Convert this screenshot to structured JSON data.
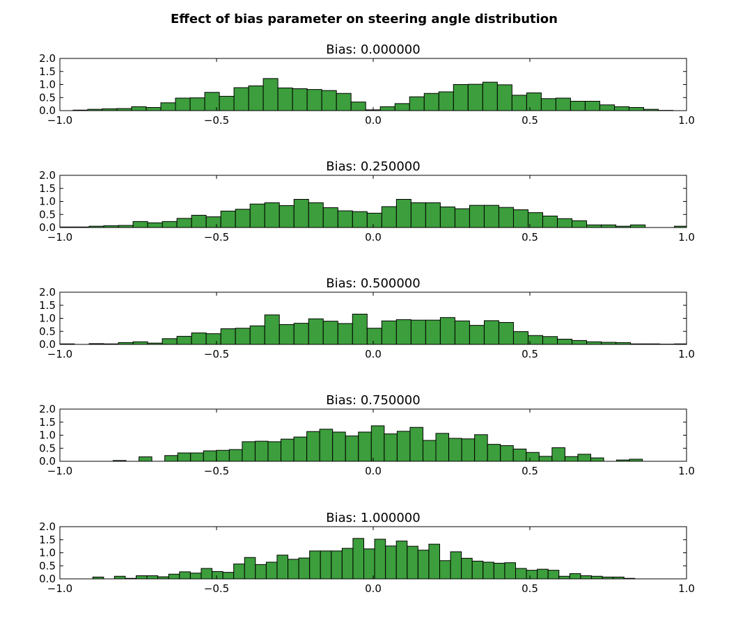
{
  "figure": {
    "title": "Effect of bias parameter on steering angle distribution",
    "bar_color": "#3c9e3c",
    "edge_color": "#000000"
  },
  "chart_data": [
    {
      "type": "bar",
      "title": "Bias: 0.000000",
      "xlim": [
        -1.0,
        1.0
      ],
      "ylim": [
        0.0,
        2.0
      ],
      "xticks": [
        "−1.0",
        "−0.5",
        "0.0",
        "0.5",
        "1.0"
      ],
      "yticks": [
        "0.0",
        "0.5",
        "1.0",
        "1.5",
        "2.0"
      ],
      "bin_start": -0.958,
      "bin_width": 0.0467,
      "values": [
        0.02,
        0.05,
        0.07,
        0.08,
        0.15,
        0.12,
        0.3,
        0.48,
        0.49,
        0.7,
        0.55,
        0.88,
        0.95,
        1.23,
        0.87,
        0.84,
        0.81,
        0.77,
        0.66,
        0.33,
        0.03,
        0.15,
        0.27,
        0.53,
        0.66,
        0.72,
        1.0,
        1.01,
        1.09,
        0.99,
        0.59,
        0.68,
        0.46,
        0.48,
        0.36,
        0.36,
        0.22,
        0.15,
        0.12,
        0.05,
        0.01
      ]
    },
    {
      "type": "bar",
      "title": "Bias: 0.250000",
      "xlim": [
        -1.0,
        1.0
      ],
      "ylim": [
        0.0,
        2.0
      ],
      "xticks": [
        "−1.0",
        "−0.5",
        "0.0",
        "0.5",
        "1.0"
      ],
      "yticks": [
        "0.0",
        "0.5",
        "1.0",
        "1.5",
        "2.0"
      ],
      "bin_start": -1.0,
      "bin_width": 0.0467,
      "values": [
        0.02,
        0.02,
        0.05,
        0.07,
        0.08,
        0.23,
        0.18,
        0.23,
        0.35,
        0.47,
        0.41,
        0.63,
        0.7,
        0.9,
        0.95,
        0.84,
        1.08,
        0.95,
        0.76,
        0.64,
        0.61,
        0.55,
        0.8,
        1.08,
        0.95,
        0.95,
        0.79,
        0.72,
        0.85,
        0.85,
        0.77,
        0.68,
        0.57,
        0.44,
        0.34,
        0.26,
        0.1,
        0.1,
        0.05,
        0.1,
        0.0,
        0.0,
        0.05
      ]
    },
    {
      "type": "bar",
      "title": "Bias: 0.500000",
      "xlim": [
        -1.0,
        1.0
      ],
      "ylim": [
        0.0,
        2.0
      ],
      "xticks": [
        "−1.0",
        "−0.5",
        "0.0",
        "0.5",
        "1.0"
      ],
      "yticks": [
        "0.0",
        "0.5",
        "1.0",
        "1.5",
        "2.0"
      ],
      "bin_start": -1.0,
      "bin_width": 0.0467,
      "values": [
        0.02,
        0.0,
        0.03,
        0.02,
        0.07,
        0.1,
        0.05,
        0.22,
        0.31,
        0.44,
        0.41,
        0.6,
        0.62,
        0.71,
        1.13,
        0.76,
        0.81,
        0.98,
        0.89,
        0.8,
        1.16,
        0.62,
        0.9,
        0.95,
        0.93,
        0.93,
        1.03,
        0.9,
        0.73,
        0.91,
        0.84,
        0.49,
        0.34,
        0.3,
        0.2,
        0.15,
        0.1,
        0.08,
        0.07,
        0.02,
        0.02,
        0.01,
        0.02
      ]
    },
    {
      "type": "bar",
      "title": "Bias: 0.750000",
      "xlim": [
        -1.0,
        1.0
      ],
      "ylim": [
        0.0,
        2.0
      ],
      "xticks": [
        "−1.0",
        "−0.5",
        "0.0",
        "0.5",
        "1.0"
      ],
      "yticks": [
        "0.0",
        "0.5",
        "1.0",
        "1.5",
        "2.0"
      ],
      "bin_start": -0.83,
      "bin_width": 0.0412,
      "values": [
        0.03,
        0.0,
        0.17,
        0.0,
        0.22,
        0.32,
        0.32,
        0.4,
        0.42,
        0.45,
        0.75,
        0.77,
        0.75,
        0.85,
        0.93,
        1.14,
        1.23,
        1.12,
        0.97,
        1.12,
        1.36,
        1.05,
        1.15,
        1.3,
        0.8,
        1.07,
        0.88,
        0.86,
        1.02,
        0.65,
        0.6,
        0.47,
        0.34,
        0.19,
        0.52,
        0.18,
        0.27,
        0.13,
        0.0,
        0.05,
        0.08
      ]
    },
    {
      "type": "bar",
      "title": "Bias: 1.000000",
      "xlim": [
        -1.0,
        1.0
      ],
      "ylim": [
        0.0,
        2.0
      ],
      "xticks": [
        "−1.0",
        "−0.5",
        "0.0",
        "0.5",
        "1.0"
      ],
      "yticks": [
        "0.0",
        "0.5",
        "1.0",
        "1.5",
        "2.0"
      ],
      "bin_start": -0.895,
      "bin_width": 0.0346,
      "values": [
        0.07,
        0.0,
        0.1,
        0.02,
        0.12,
        0.12,
        0.08,
        0.18,
        0.27,
        0.22,
        0.4,
        0.28,
        0.25,
        0.57,
        0.82,
        0.55,
        0.64,
        0.91,
        0.75,
        0.8,
        1.07,
        1.07,
        1.07,
        1.17,
        1.55,
        1.15,
        1.52,
        1.26,
        1.45,
        1.25,
        1.1,
        1.33,
        0.7,
        1.04,
        0.79,
        0.68,
        0.64,
        0.6,
        0.62,
        0.4,
        0.33,
        0.37,
        0.33,
        0.1,
        0.2,
        0.12,
        0.1,
        0.07,
        0.07,
        0.02
      ]
    }
  ]
}
